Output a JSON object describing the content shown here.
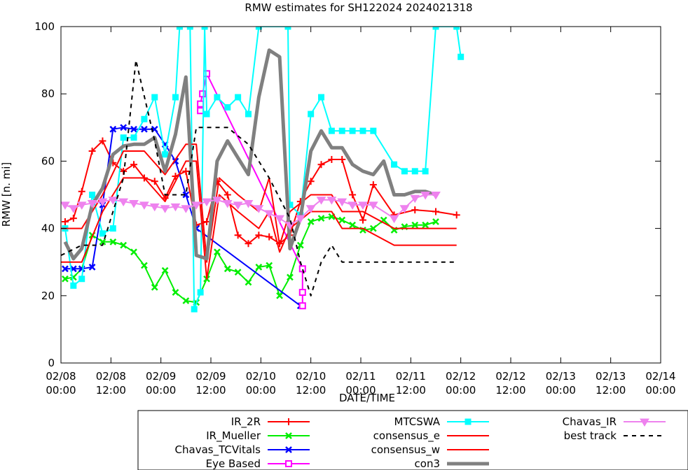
{
  "chart_data": {
    "type": "line",
    "title": "RMW estimates for SH122024 2024021318",
    "xlabel": "DATE/TIME",
    "ylabel": "RMW [n. mi]",
    "xlim": [
      0,
      144
    ],
    "ylim": [
      0,
      100
    ],
    "x_unit": "hours since 02/08 00:00",
    "x_ticks": [
      {
        "x": 0,
        "line1": "02/08",
        "line2": "00:00"
      },
      {
        "x": 12,
        "line1": "02/08",
        "line2": "12:00"
      },
      {
        "x": 24,
        "line1": "02/09",
        "line2": "00:00"
      },
      {
        "x": 36,
        "line1": "02/09",
        "line2": "12:00"
      },
      {
        "x": 48,
        "line1": "02/10",
        "line2": "00:00"
      },
      {
        "x": 60,
        "line1": "02/10",
        "line2": "12:00"
      },
      {
        "x": 72,
        "line1": "02/11",
        "line2": "00:00"
      },
      {
        "x": 84,
        "line1": "02/11",
        "line2": "12:00"
      },
      {
        "x": 96,
        "line1": "02/12",
        "line2": "00:00"
      },
      {
        "x": 108,
        "line1": "02/12",
        "line2": "12:00"
      },
      {
        "x": 120,
        "line1": "02/13",
        "line2": "00:00"
      },
      {
        "x": 132,
        "line1": "02/13",
        "line2": "12:00"
      },
      {
        "x": 144,
        "line1": "02/14",
        "line2": "00:00"
      }
    ],
    "y_ticks": [
      0,
      20,
      40,
      60,
      80,
      100
    ],
    "grid": false,
    "legend_position": "bottom",
    "series": [
      {
        "name": "IR_2R",
        "color": "#ff0000",
        "width": 2,
        "marker": "plus",
        "points": [
          [
            1,
            42
          ],
          [
            3,
            43
          ],
          [
            5,
            51
          ],
          [
            7.5,
            63
          ],
          [
            10,
            66
          ],
          [
            12.5,
            59.5
          ],
          [
            15,
            57
          ],
          [
            17.5,
            59
          ],
          [
            20,
            55
          ],
          [
            22.5,
            54
          ],
          [
            25,
            49
          ],
          [
            27.5,
            55.5
          ],
          [
            30,
            57
          ],
          [
            32.5,
            41
          ],
          [
            35,
            42
          ],
          [
            37.5,
            54
          ],
          [
            40,
            50
          ],
          [
            42.5,
            38
          ],
          [
            45,
            35.5
          ],
          [
            47.5,
            38
          ],
          [
            50,
            37.5
          ],
          [
            52.5,
            35.5
          ],
          [
            55,
            38
          ],
          [
            57.5,
            48
          ],
          [
            60,
            54
          ],
          [
            62.5,
            59
          ],
          [
            65,
            60.5
          ],
          [
            67.5,
            60.5
          ],
          [
            70,
            50
          ],
          [
            72.5,
            42.5
          ],
          [
            75,
            53
          ],
          [
            80,
            44
          ],
          [
            85,
            45.5
          ],
          [
            90,
            45
          ],
          [
            95,
            44
          ]
        ]
      },
      {
        "name": "IR_Mueller",
        "color": "#00ee00",
        "width": 2,
        "marker": "x",
        "points": [
          [
            1,
            25
          ],
          [
            3,
            25.5
          ],
          [
            5,
            28
          ],
          [
            7.5,
            38
          ],
          [
            10,
            36
          ],
          [
            12.5,
            36
          ],
          [
            15,
            35
          ],
          [
            17.5,
            33
          ],
          [
            20,
            29
          ],
          [
            22.5,
            22.5
          ],
          [
            25,
            27.5
          ],
          [
            27.5,
            21
          ],
          [
            30,
            18.5
          ],
          [
            32.5,
            18
          ],
          [
            35,
            25
          ],
          [
            37.5,
            33
          ],
          [
            40,
            28
          ],
          [
            42.5,
            27
          ],
          [
            45,
            24
          ],
          [
            47.5,
            28.5
          ],
          [
            50,
            29
          ],
          [
            52.5,
            20
          ],
          [
            55,
            25.5
          ],
          [
            57.5,
            35
          ],
          [
            60,
            42
          ],
          [
            62.5,
            43
          ],
          [
            65,
            43.5
          ],
          [
            67.5,
            42.5
          ],
          [
            70,
            41
          ],
          [
            72.5,
            39.5
          ],
          [
            75,
            40
          ],
          [
            77.5,
            42.5
          ],
          [
            80,
            39.5
          ],
          [
            82.5,
            40.5
          ],
          [
            85,
            41
          ],
          [
            87.5,
            41
          ],
          [
            90,
            42
          ]
        ]
      },
      {
        "name": "Chavas_TCVitals",
        "color": "#0000ff",
        "width": 2,
        "marker": "x",
        "points": [
          [
            1,
            28
          ],
          [
            3,
            28
          ],
          [
            5,
            28
          ],
          [
            7.5,
            28.5
          ],
          [
            10,
            47
          ],
          [
            12.5,
            69.5
          ],
          [
            15,
            70
          ],
          [
            17.5,
            69.5
          ],
          [
            20,
            69.5
          ],
          [
            22.5,
            69.5
          ],
          [
            25,
            65
          ],
          [
            27.5,
            60
          ],
          [
            30,
            50
          ],
          [
            32.5,
            40
          ],
          [
            57.5,
            17
          ]
        ]
      },
      {
        "name": "Eye Based",
        "color": "#ff00ff",
        "width": 2,
        "marker": "square",
        "points": [
          [
            33.5,
            75
          ],
          [
            33.5,
            77
          ],
          [
            34,
            80
          ],
          [
            35,
            86
          ],
          [
            58,
            28
          ],
          [
            58,
            21
          ],
          [
            58,
            17
          ]
        ]
      },
      {
        "name": "MTCSWA",
        "color": "#00ffff",
        "width": 2,
        "marker": "filled-square",
        "points": [
          [
            1,
            40
          ],
          [
            3,
            23
          ],
          [
            5,
            25
          ],
          [
            7.5,
            50
          ],
          [
            10,
            38.5
          ],
          [
            12.5,
            40
          ],
          [
            15,
            67
          ],
          [
            17.5,
            67
          ],
          [
            20,
            72.5
          ],
          [
            22.5,
            79
          ],
          [
            25,
            62
          ],
          [
            27.5,
            79
          ],
          [
            28.5,
            100
          ],
          [
            31,
            100
          ],
          [
            32,
            16
          ],
          [
            33.5,
            21
          ],
          [
            34.5,
            100
          ],
          [
            35,
            74
          ],
          [
            37.5,
            79
          ],
          [
            40,
            76
          ],
          [
            42.5,
            79
          ],
          [
            45,
            74
          ],
          [
            47.5,
            100
          ],
          [
            54.5,
            100
          ],
          [
            55,
            47
          ],
          [
            57.5,
            44
          ],
          [
            60,
            74
          ],
          [
            62.5,
            79
          ],
          [
            65,
            69
          ],
          [
            67.5,
            69
          ],
          [
            70,
            69
          ],
          [
            72.5,
            69
          ],
          [
            75,
            69
          ],
          [
            80,
            59
          ],
          [
            82.5,
            57
          ],
          [
            85,
            57
          ],
          [
            87.5,
            57
          ],
          [
            90,
            100
          ],
          [
            95,
            100
          ],
          [
            96,
            91
          ]
        ]
      },
      {
        "name": "consensus_e",
        "color": "#ff0000",
        "width": 2,
        "marker": "none",
        "points": [
          [
            0,
            40
          ],
          [
            5,
            40
          ],
          [
            10,
            50
          ],
          [
            15,
            63
          ],
          [
            20,
            63
          ],
          [
            25,
            56
          ],
          [
            30,
            65
          ],
          [
            32.5,
            65
          ],
          [
            35,
            30
          ],
          [
            38,
            55
          ],
          [
            42.5,
            50
          ],
          [
            47.5,
            45
          ],
          [
            50,
            55
          ],
          [
            52.5,
            35
          ],
          [
            55,
            45
          ],
          [
            60,
            50
          ],
          [
            65,
            50
          ],
          [
            67.5,
            45
          ],
          [
            72.5,
            45
          ],
          [
            80,
            40
          ],
          [
            85,
            40
          ],
          [
            90,
            40
          ],
          [
            95,
            40
          ]
        ]
      },
      {
        "name": "consensus_w",
        "color": "#ff0000",
        "width": 2,
        "marker": "none",
        "points": [
          [
            0,
            30
          ],
          [
            5,
            30
          ],
          [
            10,
            45
          ],
          [
            15,
            55
          ],
          [
            20,
            55
          ],
          [
            25,
            48
          ],
          [
            30,
            60
          ],
          [
            32.5,
            60
          ],
          [
            35,
            25
          ],
          [
            38,
            50
          ],
          [
            42.5,
            45
          ],
          [
            47.5,
            40
          ],
          [
            50,
            45
          ],
          [
            52.5,
            33
          ],
          [
            55,
            40
          ],
          [
            60,
            45
          ],
          [
            65,
            45
          ],
          [
            67.5,
            40
          ],
          [
            72.5,
            40
          ],
          [
            80,
            35
          ],
          [
            85,
            35
          ],
          [
            90,
            35
          ],
          [
            95,
            35
          ]
        ]
      },
      {
        "name": "con3",
        "color": "#808080",
        "width": 5,
        "marker": "none",
        "points": [
          [
            1,
            36
          ],
          [
            3,
            31
          ],
          [
            5,
            34
          ],
          [
            7.5,
            47
          ],
          [
            10,
            52
          ],
          [
            12.5,
            62
          ],
          [
            15,
            64.5
          ],
          [
            17.5,
            65
          ],
          [
            20,
            65
          ],
          [
            22.5,
            67
          ],
          [
            25,
            57
          ],
          [
            27.5,
            68
          ],
          [
            30,
            85
          ],
          [
            32.5,
            32
          ],
          [
            35,
            31
          ],
          [
            37.5,
            60
          ],
          [
            40,
            66
          ],
          [
            42.5,
            61
          ],
          [
            45,
            56
          ],
          [
            47.5,
            79
          ],
          [
            50,
            93
          ],
          [
            52.5,
            91
          ],
          [
            55,
            34
          ],
          [
            57.5,
            43
          ],
          [
            60,
            63
          ],
          [
            62.5,
            69
          ],
          [
            65,
            64
          ],
          [
            67.5,
            64
          ],
          [
            70,
            59
          ],
          [
            72.5,
            57
          ],
          [
            75,
            56
          ],
          [
            77.5,
            60
          ],
          [
            80,
            50
          ],
          [
            82.5,
            50
          ],
          [
            85,
            51
          ],
          [
            87.5,
            51
          ],
          [
            90,
            50
          ]
        ]
      },
      {
        "name": "Chavas_IR",
        "color": "#ee82ee",
        "width": 2,
        "marker": "triangle-down",
        "points": [
          [
            1,
            47
          ],
          [
            3,
            46
          ],
          [
            5,
            47
          ],
          [
            7.5,
            47.5
          ],
          [
            10,
            48
          ],
          [
            12.5,
            48.5
          ],
          [
            15,
            48
          ],
          [
            17.5,
            47.5
          ],
          [
            20,
            47
          ],
          [
            22.5,
            46.5
          ],
          [
            25,
            46
          ],
          [
            27.5,
            46.5
          ],
          [
            30,
            46
          ],
          [
            32.5,
            47
          ],
          [
            35,
            48
          ],
          [
            37.5,
            48.5
          ],
          [
            40,
            47.5
          ],
          [
            42.5,
            47
          ],
          [
            45,
            47.5
          ],
          [
            47.5,
            46
          ],
          [
            50,
            44.5
          ],
          [
            52.5,
            43
          ],
          [
            55,
            41
          ],
          [
            57.5,
            43
          ],
          [
            60,
            46
          ],
          [
            62.5,
            48.5
          ],
          [
            65,
            48.5
          ],
          [
            67.5,
            48
          ],
          [
            70,
            47
          ],
          [
            72.5,
            47
          ],
          [
            75,
            47
          ],
          [
            80,
            43
          ],
          [
            82.5,
            46
          ],
          [
            85,
            49
          ],
          [
            87.5,
            50
          ],
          [
            90,
            50
          ]
        ]
      },
      {
        "name": "best track",
        "color": "#000000",
        "width": 2,
        "dash": "6,6",
        "marker": "none",
        "points": [
          [
            0,
            32
          ],
          [
            5,
            35
          ],
          [
            10,
            35
          ],
          [
            15,
            55
          ],
          [
            18,
            90
          ],
          [
            22.5,
            66
          ],
          [
            25,
            50
          ],
          [
            30,
            50
          ],
          [
            32.5,
            70
          ],
          [
            35,
            70
          ],
          [
            40,
            70
          ],
          [
            45,
            65
          ],
          [
            50,
            55
          ],
          [
            55,
            43
          ],
          [
            57.5,
            30
          ],
          [
            60,
            20
          ],
          [
            62.5,
            30
          ],
          [
            65,
            35
          ],
          [
            67.5,
            30
          ],
          [
            72.5,
            30
          ],
          [
            80,
            30
          ],
          [
            85,
            30
          ],
          [
            90,
            30
          ],
          [
            95,
            30
          ]
        ]
      }
    ],
    "legend_columns": [
      [
        "IR_2R",
        "IR_Mueller",
        "Chavas_TCVitals",
        "Eye Based"
      ],
      [
        "MTCSWA",
        "consensus_e",
        "consensus_w",
        "con3"
      ],
      [
        "Chavas_IR",
        "best track"
      ]
    ]
  }
}
